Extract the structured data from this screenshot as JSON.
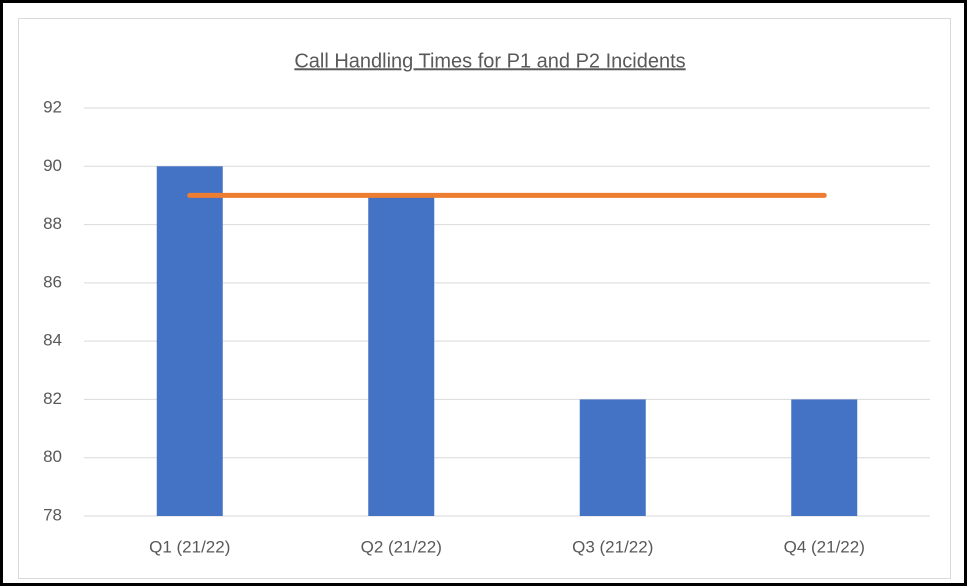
{
  "chart_data": {
    "type": "bar",
    "title": "Call Handling Times for P1 and P2 Incidents",
    "categories": [
      "Q1 (21/22)",
      "Q2 (21/22)",
      "Q3 (21/22)",
      "Q4 (21/22)"
    ],
    "series": [
      {
        "type": "bar",
        "color": "#4472c4",
        "values": [
          90,
          89,
          82,
          82
        ]
      },
      {
        "type": "line",
        "color": "#ed7d31",
        "values": [
          89,
          89,
          89,
          89
        ]
      }
    ],
    "ylim": [
      78,
      92
    ],
    "yticks": [
      78,
      80,
      82,
      84,
      86,
      88,
      90,
      92
    ],
    "grid": true
  }
}
